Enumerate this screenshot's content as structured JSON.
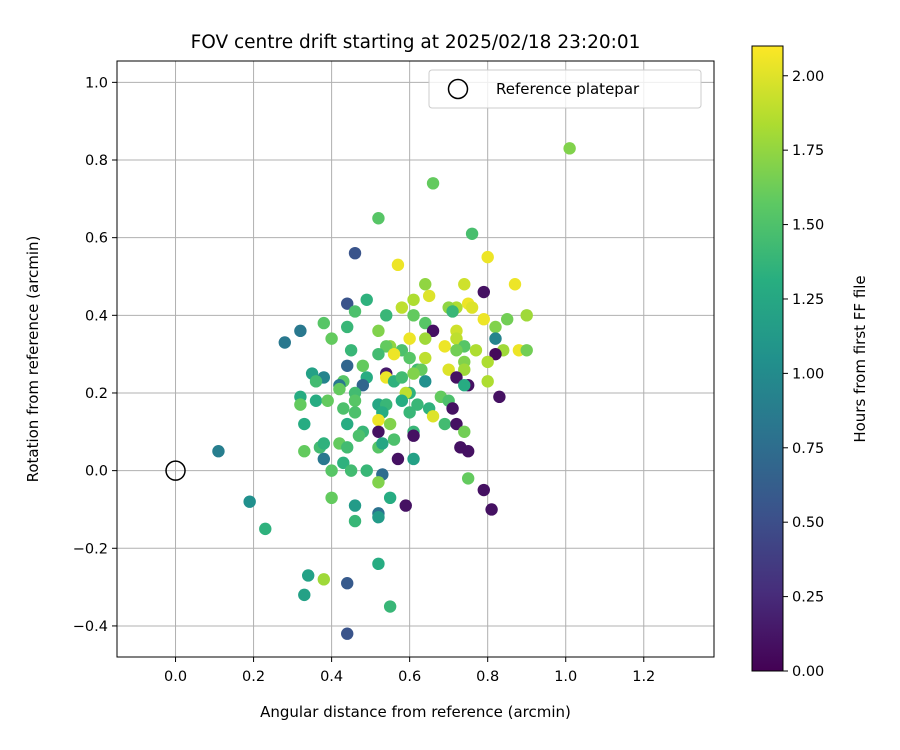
{
  "chart_data": {
    "type": "scatter",
    "title": "FOV centre drift starting at 2025/02/18 23:20:01",
    "xlabel": "Angular distance from reference (arcmin)",
    "ylabel": "Rotation from reference (arcmin)",
    "colorbar_label": "Hours from first FF file",
    "xlim": [
      -0.15,
      1.38
    ],
    "ylim": [
      -0.48,
      1.055
    ],
    "xticks": [
      "0.0",
      "0.2",
      "0.4",
      "0.6",
      "0.8",
      "1.0",
      "1.2"
    ],
    "xtick_values": [
      0.0,
      0.2,
      0.4,
      0.6,
      0.8,
      1.0,
      1.2
    ],
    "yticks": [
      "−0.4",
      "−0.2",
      "0.0",
      "0.2",
      "0.4",
      "0.6",
      "0.8",
      "1.0"
    ],
    "ytick_values": [
      -0.4,
      -0.2,
      0.0,
      0.2,
      0.4,
      0.6,
      0.8,
      1.0
    ],
    "colorbar_range": [
      0.0,
      2.1
    ],
    "colorbar_ticks": [
      "0.00",
      "0.25",
      "0.50",
      "0.75",
      "1.00",
      "1.25",
      "1.50",
      "1.75",
      "2.00"
    ],
    "colorbar_tick_values": [
      0.0,
      0.25,
      0.5,
      0.75,
      1.0,
      1.25,
      1.5,
      1.75,
      2.0
    ],
    "colormap": "viridis",
    "grid": true,
    "legend": {
      "label": "Reference platepar",
      "position": "top-right"
    },
    "reference_point": [
      0.0,
      0.0
    ],
    "points": [
      [
        1.01,
        0.83,
        1.7
      ],
      [
        0.66,
        0.74,
        1.6
      ],
      [
        0.52,
        0.65,
        1.55
      ],
      [
        0.76,
        0.61,
        1.48
      ],
      [
        0.46,
        0.56,
        0.55
      ],
      [
        0.57,
        0.53,
        2.05
      ],
      [
        0.8,
        0.55,
        2.05
      ],
      [
        0.87,
        0.48,
        2.05
      ],
      [
        0.74,
        0.48,
        1.95
      ],
      [
        0.64,
        0.48,
        1.75
      ],
      [
        0.79,
        0.46,
        0.1
      ],
      [
        0.65,
        0.45,
        2.0
      ],
      [
        0.61,
        0.44,
        1.85
      ],
      [
        0.49,
        0.44,
        1.35
      ],
      [
        0.44,
        0.43,
        0.55
      ],
      [
        0.75,
        0.43,
        2.05
      ],
      [
        0.76,
        0.42,
        2.0
      ],
      [
        0.72,
        0.42,
        1.85
      ],
      [
        0.58,
        0.42,
        1.9
      ],
      [
        0.7,
        0.42,
        1.75
      ],
      [
        0.46,
        0.41,
        1.5
      ],
      [
        0.71,
        0.41,
        1.4
      ],
      [
        0.9,
        0.4,
        1.8
      ],
      [
        0.61,
        0.4,
        1.6
      ],
      [
        0.54,
        0.4,
        1.4
      ],
      [
        0.79,
        0.39,
        2.05
      ],
      [
        0.85,
        0.39,
        1.65
      ],
      [
        0.64,
        0.38,
        1.55
      ],
      [
        0.38,
        0.38,
        1.55
      ],
      [
        0.44,
        0.37,
        1.4
      ],
      [
        0.66,
        0.36,
        0.1
      ],
      [
        0.82,
        0.37,
        1.7
      ],
      [
        0.72,
        0.36,
        1.95
      ],
      [
        0.52,
        0.36,
        1.7
      ],
      [
        0.32,
        0.36,
        0.85
      ],
      [
        0.64,
        0.34,
        1.8
      ],
      [
        0.72,
        0.34,
        1.9
      ],
      [
        0.6,
        0.34,
        2.05
      ],
      [
        0.4,
        0.34,
        1.6
      ],
      [
        0.82,
        0.34,
        0.95
      ],
      [
        0.28,
        0.33,
        0.85
      ],
      [
        0.69,
        0.32,
        2.05
      ],
      [
        0.55,
        0.32,
        1.75
      ],
      [
        0.54,
        0.32,
        1.6
      ],
      [
        0.74,
        0.32,
        1.55
      ],
      [
        0.77,
        0.31,
        1.85
      ],
      [
        0.84,
        0.31,
        1.8
      ],
      [
        0.58,
        0.31,
        1.5
      ],
      [
        0.72,
        0.31,
        1.65
      ],
      [
        0.88,
        0.31,
        2.05
      ],
      [
        0.52,
        0.3,
        1.45
      ],
      [
        0.56,
        0.3,
        2.05
      ],
      [
        0.45,
        0.31,
        1.4
      ],
      [
        0.9,
        0.31,
        1.65
      ],
      [
        0.82,
        0.3,
        0.05
      ],
      [
        0.64,
        0.29,
        1.9
      ],
      [
        0.6,
        0.29,
        1.55
      ],
      [
        0.74,
        0.28,
        1.7
      ],
      [
        0.8,
        0.28,
        1.85
      ],
      [
        0.48,
        0.27,
        1.6
      ],
      [
        0.44,
        0.27,
        0.7
      ],
      [
        0.62,
        0.26,
        1.45
      ],
      [
        0.7,
        0.26,
        2.0
      ],
      [
        0.74,
        0.26,
        1.8
      ],
      [
        0.63,
        0.26,
        1.6
      ],
      [
        0.54,
        0.25,
        0.15
      ],
      [
        0.61,
        0.25,
        1.7
      ],
      [
        0.35,
        0.25,
        1.2
      ],
      [
        0.49,
        0.24,
        1.3
      ],
      [
        0.38,
        0.24,
        0.95
      ],
      [
        0.54,
        0.24,
        2.05
      ],
      [
        0.72,
        0.24,
        0.1
      ],
      [
        0.36,
        0.23,
        1.45
      ],
      [
        0.56,
        0.23,
        1.35
      ],
      [
        0.43,
        0.23,
        1.55
      ],
      [
        0.42,
        0.22,
        0.85
      ],
      [
        0.48,
        0.22,
        0.7
      ],
      [
        0.58,
        0.24,
        1.45
      ],
      [
        0.64,
        0.23,
        1.05
      ],
      [
        0.75,
        0.22,
        0.1
      ],
      [
        0.74,
        0.22,
        1.3
      ],
      [
        0.8,
        0.23,
        1.85
      ],
      [
        0.6,
        0.2,
        1.35
      ],
      [
        0.42,
        0.21,
        1.6
      ],
      [
        0.32,
        0.19,
        1.3
      ],
      [
        0.46,
        0.2,
        1.45
      ],
      [
        0.59,
        0.2,
        1.9
      ],
      [
        0.68,
        0.19,
        1.6
      ],
      [
        0.83,
        0.19,
        0.1
      ],
      [
        0.7,
        0.18,
        1.5
      ],
      [
        0.62,
        0.17,
        1.4
      ],
      [
        0.52,
        0.17,
        1.25
      ],
      [
        0.36,
        0.18,
        1.3
      ],
      [
        0.39,
        0.18,
        1.6
      ],
      [
        0.46,
        0.18,
        1.55
      ],
      [
        0.54,
        0.17,
        1.4
      ],
      [
        0.58,
        0.18,
        1.3
      ],
      [
        0.71,
        0.16,
        0.1
      ],
      [
        0.32,
        0.17,
        1.6
      ],
      [
        0.43,
        0.16,
        1.5
      ],
      [
        0.65,
        0.16,
        1.35
      ],
      [
        0.53,
        0.15,
        1.3
      ],
      [
        0.6,
        0.15,
        1.4
      ],
      [
        0.46,
        0.15,
        1.5
      ],
      [
        0.66,
        0.14,
        2.0
      ],
      [
        0.52,
        0.13,
        2.05
      ],
      [
        0.44,
        0.12,
        1.3
      ],
      [
        0.55,
        0.12,
        1.7
      ],
      [
        0.69,
        0.12,
        1.45
      ],
      [
        0.72,
        0.12,
        0.1
      ],
      [
        0.33,
        0.12,
        1.3
      ],
      [
        0.61,
        0.1,
        1.4
      ],
      [
        0.48,
        0.1,
        1.4
      ],
      [
        0.52,
        0.1,
        0.1
      ],
      [
        0.61,
        0.09,
        0.1
      ],
      [
        0.74,
        0.1,
        1.65
      ],
      [
        0.47,
        0.09,
        1.5
      ],
      [
        0.56,
        0.08,
        1.5
      ],
      [
        0.42,
        0.07,
        1.6
      ],
      [
        0.37,
        0.06,
        1.45
      ],
      [
        0.38,
        0.07,
        1.35
      ],
      [
        0.44,
        0.06,
        1.45
      ],
      [
        0.52,
        0.06,
        1.55
      ],
      [
        0.53,
        0.07,
        1.25
      ],
      [
        0.73,
        0.06,
        0.1
      ],
      [
        0.75,
        0.05,
        0.1
      ],
      [
        0.11,
        0.05,
        0.9
      ],
      [
        0.33,
        0.05,
        1.6
      ],
      [
        0.38,
        0.03,
        0.85
      ],
      [
        0.57,
        0.03,
        0.1
      ],
      [
        0.61,
        0.03,
        1.2
      ],
      [
        0.43,
        0.02,
        1.35
      ],
      [
        0.4,
        0.0,
        1.55
      ],
      [
        0.45,
        0.0,
        1.45
      ],
      [
        0.49,
        0.0,
        1.4
      ],
      [
        0.53,
        -0.01,
        0.75
      ],
      [
        0.75,
        -0.02,
        1.6
      ],
      [
        0.52,
        -0.03,
        1.7
      ],
      [
        0.79,
        -0.05,
        0.1
      ],
      [
        0.4,
        -0.07,
        1.6
      ],
      [
        0.55,
        -0.07,
        1.3
      ],
      [
        0.59,
        -0.09,
        0.1
      ],
      [
        0.46,
        -0.09,
        1.15
      ],
      [
        0.81,
        -0.1,
        0.1
      ],
      [
        0.52,
        -0.11,
        0.8
      ],
      [
        0.52,
        -0.12,
        1.15
      ],
      [
        0.46,
        -0.13,
        1.4
      ],
      [
        0.19,
        -0.08,
        1.05
      ],
      [
        0.23,
        -0.15,
        1.35
      ],
      [
        0.52,
        -0.24,
        1.3
      ],
      [
        0.34,
        -0.27,
        1.2
      ],
      [
        0.38,
        -0.28,
        1.8
      ],
      [
        0.44,
        -0.29,
        0.6
      ],
      [
        0.33,
        -0.32,
        1.2
      ],
      [
        0.55,
        -0.35,
        1.4
      ],
      [
        0.44,
        -0.42,
        0.55
      ]
    ]
  }
}
